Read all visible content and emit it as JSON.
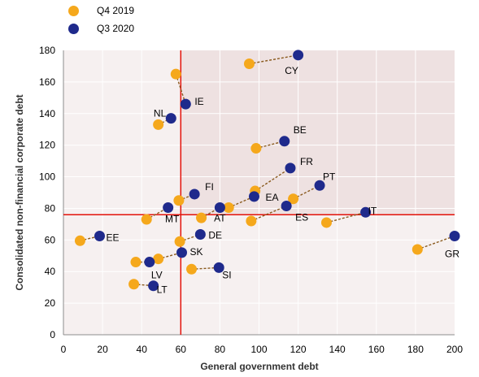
{
  "chart_data": {
    "type": "scatter",
    "xlabel": "General government debt",
    "ylabel": "Consolidated non-financial corporate debt",
    "xlim": [
      0,
      200
    ],
    "ylim": [
      0,
      180
    ],
    "x_ticks": [
      0,
      20,
      40,
      60,
      80,
      100,
      120,
      140,
      160,
      180,
      200
    ],
    "y_ticks": [
      0,
      20,
      40,
      60,
      80,
      100,
      120,
      140,
      160,
      180
    ],
    "reference_lines": {
      "x": 60,
      "y": 76
    },
    "legend_position": "top-left",
    "series": [
      {
        "name": "Q4 2019",
        "color": "#f5a81c"
      },
      {
        "name": "Q3 2020",
        "color": "#1f2a8c"
      }
    ],
    "countries": [
      {
        "code": "CY",
        "q4_2019": [
          95,
          171.5
        ],
        "q3_2020": [
          120,
          177
        ]
      },
      {
        "code": "NL",
        "q4_2019": [
          48.5,
          133
        ],
        "q3_2020": [
          55,
          137
        ]
      },
      {
        "code": "IE",
        "q4_2019": [
          57.5,
          165
        ],
        "q3_2020": [
          62.5,
          146
        ]
      },
      {
        "code": "BE",
        "q4_2019": [
          98.5,
          118
        ],
        "q3_2020": [
          113,
          122.5
        ]
      },
      {
        "code": "FR",
        "q4_2019": [
          98,
          91
        ],
        "q3_2020": [
          116,
          105.5
        ]
      },
      {
        "code": "PT",
        "q4_2019": [
          117.5,
          86
        ],
        "q3_2020": [
          131,
          94.5
        ]
      },
      {
        "code": "FI",
        "q4_2019": [
          59,
          85
        ],
        "q3_2020": [
          67,
          89
        ]
      },
      {
        "code": "EA",
        "q4_2019": [
          84.5,
          80.5
        ],
        "q3_2020": [
          97.5,
          87.5
        ]
      },
      {
        "code": "MT",
        "q4_2019": [
          42.5,
          73
        ],
        "q3_2020": [
          53.5,
          80.5
        ]
      },
      {
        "code": "AT",
        "q4_2019": [
          70.5,
          74
        ],
        "q3_2020": [
          80,
          80.5
        ]
      },
      {
        "code": "ES",
        "q4_2019": [
          96,
          72
        ],
        "q3_2020": [
          114,
          81.5
        ]
      },
      {
        "code": "IT",
        "q4_2019": [
          134.5,
          71
        ],
        "q3_2020": [
          154.5,
          77.5
        ]
      },
      {
        "code": "EE",
        "q4_2019": [
          8.5,
          59.5
        ],
        "q3_2020": [
          18.5,
          62.5
        ]
      },
      {
        "code": "DE",
        "q4_2019": [
          59.5,
          59
        ],
        "q3_2020": [
          70,
          63.5
        ]
      },
      {
        "code": "GR",
        "q4_2019": [
          181,
          54
        ],
        "q3_2020": [
          200,
          62.5
        ]
      },
      {
        "code": "SK",
        "q4_2019": [
          48.5,
          48
        ],
        "q3_2020": [
          60.5,
          52
        ]
      },
      {
        "code": "LV",
        "q4_2019": [
          37,
          46
        ],
        "q3_2020": [
          44,
          46
        ]
      },
      {
        "code": "SI",
        "q4_2019": [
          65.5,
          41.5
        ],
        "q3_2020": [
          79.5,
          42.5
        ]
      },
      {
        "code": "LT",
        "q4_2019": [
          36,
          32
        ],
        "q3_2020": [
          46,
          31
        ]
      }
    ]
  }
}
